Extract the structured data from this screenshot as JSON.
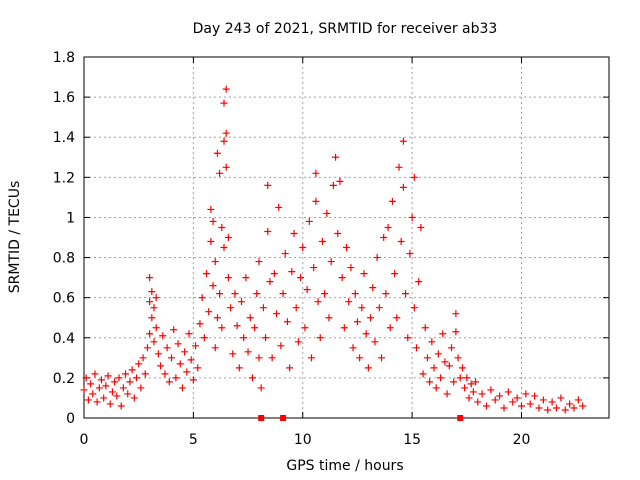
{
  "chart_data": {
    "type": "scatter",
    "title": "Day 243 of 2021, SRMTID for receiver ab33",
    "xlabel": "GPS time / hours",
    "ylabel": "SRMTID / TECUs",
    "xlim": [
      0,
      24
    ],
    "ylim": [
      0,
      1.8
    ],
    "grid": true,
    "marker": "+",
    "series_color": "#ff0000",
    "x_ticks": [
      {
        "value": 0,
        "label": "0"
      },
      {
        "value": 5,
        "label": "5"
      },
      {
        "value": 10,
        "label": "10"
      },
      {
        "value": 15,
        "label": "15"
      },
      {
        "value": 20,
        "label": "20"
      }
    ],
    "y_ticks": [
      {
        "value": 0,
        "label": "0"
      },
      {
        "value": 0.2,
        "label": "0.2"
      },
      {
        "value": 0.4,
        "label": "0.4"
      },
      {
        "value": 0.6,
        "label": "0.6"
      },
      {
        "value": 0.8,
        "label": "0.8"
      },
      {
        "value": 1.0,
        "label": "1"
      },
      {
        "value": 1.2,
        "label": "1.2"
      },
      {
        "value": 1.4,
        "label": "1.4"
      },
      {
        "value": 1.6,
        "label": "1.6"
      },
      {
        "value": 1.8,
        "label": "1.8"
      }
    ],
    "series": [
      {
        "name": "SRMTID",
        "points": [
          [
            0.0,
            0.14
          ],
          [
            0.1,
            0.2
          ],
          [
            0.2,
            0.09
          ],
          [
            0.3,
            0.17
          ],
          [
            0.4,
            0.12
          ],
          [
            0.5,
            0.22
          ],
          [
            0.6,
            0.08
          ],
          [
            0.7,
            0.15
          ],
          [
            0.8,
            0.19
          ],
          [
            0.9,
            0.1
          ],
          [
            1.0,
            0.16
          ],
          [
            1.1,
            0.21
          ],
          [
            1.2,
            0.07
          ],
          [
            1.3,
            0.13
          ],
          [
            1.4,
            0.18
          ],
          [
            1.5,
            0.11
          ],
          [
            1.6,
            0.2
          ],
          [
            1.7,
            0.06
          ],
          [
            1.8,
            0.15
          ],
          [
            1.9,
            0.22
          ],
          [
            2.0,
            0.12
          ],
          [
            2.1,
            0.18
          ],
          [
            2.2,
            0.24
          ],
          [
            2.3,
            0.1
          ],
          [
            2.4,
            0.2
          ],
          [
            2.5,
            0.27
          ],
          [
            2.6,
            0.15
          ],
          [
            2.7,
            0.3
          ],
          [
            2.8,
            0.22
          ],
          [
            2.9,
            0.35
          ],
          [
            3.0,
            0.42
          ],
          [
            3.0,
            0.58
          ],
          [
            3.0,
            0.7
          ],
          [
            3.1,
            0.5
          ],
          [
            3.1,
            0.63
          ],
          [
            3.2,
            0.38
          ],
          [
            3.2,
            0.55
          ],
          [
            3.3,
            0.6
          ],
          [
            3.3,
            0.45
          ],
          [
            3.4,
            0.32
          ],
          [
            3.5,
            0.26
          ],
          [
            3.6,
            0.41
          ],
          [
            3.7,
            0.22
          ],
          [
            3.8,
            0.35
          ],
          [
            3.9,
            0.18
          ],
          [
            4.0,
            0.3
          ],
          [
            4.1,
            0.44
          ],
          [
            4.2,
            0.2
          ],
          [
            4.3,
            0.37
          ],
          [
            4.4,
            0.27
          ],
          [
            4.5,
            0.15
          ],
          [
            4.6,
            0.33
          ],
          [
            4.7,
            0.23
          ],
          [
            4.8,
            0.42
          ],
          [
            4.9,
            0.29
          ],
          [
            5.0,
            0.19
          ],
          [
            5.1,
            0.36
          ],
          [
            5.2,
            0.25
          ],
          [
            5.3,
            0.47
          ],
          [
            5.4,
            0.6
          ],
          [
            5.5,
            0.4
          ],
          [
            5.6,
            0.72
          ],
          [
            5.7,
            0.53
          ],
          [
            5.8,
            0.88
          ],
          [
            5.8,
            1.04
          ],
          [
            5.9,
            0.98
          ],
          [
            5.9,
            0.66
          ],
          [
            6.0,
            0.35
          ],
          [
            6.0,
            0.78
          ],
          [
            6.1,
            0.5
          ],
          [
            6.1,
            1.32
          ],
          [
            6.2,
            0.62
          ],
          [
            6.2,
            1.22
          ],
          [
            6.3,
            0.45
          ],
          [
            6.3,
            0.95
          ],
          [
            6.4,
            1.38
          ],
          [
            6.4,
            0.85
          ],
          [
            6.4,
            1.57
          ],
          [
            6.5,
            1.64
          ],
          [
            6.5,
            1.42
          ],
          [
            6.5,
            1.25
          ],
          [
            6.6,
            0.7
          ],
          [
            6.6,
            0.9
          ],
          [
            6.7,
            0.55
          ],
          [
            6.8,
            0.32
          ],
          [
            6.9,
            0.62
          ],
          [
            7.0,
            0.46
          ],
          [
            7.1,
            0.25
          ],
          [
            7.2,
            0.58
          ],
          [
            7.3,
            0.4
          ],
          [
            7.4,
            0.7
          ],
          [
            7.5,
            0.33
          ],
          [
            7.6,
            0.5
          ],
          [
            7.7,
            0.2
          ],
          [
            7.8,
            0.45
          ],
          [
            7.9,
            0.62
          ],
          [
            8.0,
            0.3
          ],
          [
            8.0,
            0.78
          ],
          [
            8.1,
            0.15
          ],
          [
            8.2,
            0.55
          ],
          [
            8.3,
            0.4
          ],
          [
            8.4,
            0.93
          ],
          [
            8.4,
            1.16
          ],
          [
            8.5,
            0.68
          ],
          [
            8.6,
            0.3
          ],
          [
            8.7,
            0.72
          ],
          [
            8.8,
            0.52
          ],
          [
            8.9,
            1.05
          ],
          [
            9.0,
            0.36
          ],
          [
            9.1,
            0.62
          ],
          [
            9.2,
            0.82
          ],
          [
            9.3,
            0.48
          ],
          [
            9.4,
            0.25
          ],
          [
            9.5,
            0.73
          ],
          [
            9.6,
            0.92
          ],
          [
            9.7,
            0.55
          ],
          [
            9.8,
            0.38
          ],
          [
            9.9,
            0.7
          ],
          [
            10.0,
            0.85
          ],
          [
            10.1,
            0.45
          ],
          [
            10.2,
            0.64
          ],
          [
            10.3,
            0.98
          ],
          [
            10.4,
            0.3
          ],
          [
            10.5,
            0.75
          ],
          [
            10.6,
            1.08
          ],
          [
            10.6,
            1.22
          ],
          [
            10.7,
            0.58
          ],
          [
            10.8,
            0.4
          ],
          [
            10.9,
            0.88
          ],
          [
            11.0,
            0.62
          ],
          [
            11.1,
            1.02
          ],
          [
            11.2,
            0.5
          ],
          [
            11.3,
            0.78
          ],
          [
            11.4,
            1.16
          ],
          [
            11.5,
            1.3
          ],
          [
            11.6,
            0.92
          ],
          [
            11.7,
            1.18
          ],
          [
            11.8,
            0.7
          ],
          [
            11.9,
            0.45
          ],
          [
            12.0,
            0.85
          ],
          [
            12.1,
            0.58
          ],
          [
            12.2,
            0.75
          ],
          [
            12.3,
            0.35
          ],
          [
            12.4,
            0.62
          ],
          [
            12.5,
            0.48
          ],
          [
            12.6,
            0.3
          ],
          [
            12.7,
            0.55
          ],
          [
            12.8,
            0.72
          ],
          [
            12.9,
            0.42
          ],
          [
            13.0,
            0.25
          ],
          [
            13.1,
            0.5
          ],
          [
            13.2,
            0.65
          ],
          [
            13.3,
            0.38
          ],
          [
            13.4,
            0.8
          ],
          [
            13.5,
            0.55
          ],
          [
            13.6,
            0.3
          ],
          [
            13.7,
            0.9
          ],
          [
            13.8,
            0.62
          ],
          [
            13.9,
            0.95
          ],
          [
            14.0,
            0.45
          ],
          [
            14.1,
            1.08
          ],
          [
            14.2,
            0.72
          ],
          [
            14.3,
            0.5
          ],
          [
            14.4,
            1.25
          ],
          [
            14.5,
            0.88
          ],
          [
            14.6,
            1.38
          ],
          [
            14.6,
            1.15
          ],
          [
            14.7,
            0.62
          ],
          [
            14.8,
            0.4
          ],
          [
            14.9,
            0.82
          ],
          [
            15.0,
            1.0
          ],
          [
            15.1,
            1.2
          ],
          [
            15.1,
            0.55
          ],
          [
            15.2,
            0.35
          ],
          [
            15.3,
            0.68
          ],
          [
            15.4,
            0.95
          ],
          [
            15.5,
            0.22
          ],
          [
            15.6,
            0.45
          ],
          [
            15.7,
            0.3
          ],
          [
            15.8,
            0.18
          ],
          [
            15.9,
            0.38
          ],
          [
            16.0,
            0.25
          ],
          [
            16.1,
            0.15
          ],
          [
            16.2,
            0.32
          ],
          [
            16.3,
            0.2
          ],
          [
            16.4,
            0.42
          ],
          [
            16.5,
            0.28
          ],
          [
            16.6,
            0.12
          ],
          [
            16.7,
            0.26
          ],
          [
            16.8,
            0.35
          ],
          [
            16.9,
            0.18
          ],
          [
            17.0,
            0.43
          ],
          [
            17.0,
            0.52
          ],
          [
            17.1,
            0.3
          ],
          [
            17.2,
            0.2
          ],
          [
            17.3,
            0.25
          ],
          [
            17.4,
            0.15
          ],
          [
            17.5,
            0.2
          ],
          [
            17.6,
            0.1
          ],
          [
            17.7,
            0.17
          ],
          [
            17.8,
            0.13
          ],
          [
            17.9,
            0.18
          ],
          [
            18.0,
            0.08
          ],
          [
            18.2,
            0.12
          ],
          [
            18.4,
            0.06
          ],
          [
            18.6,
            0.14
          ],
          [
            18.8,
            0.09
          ],
          [
            19.0,
            0.11
          ],
          [
            19.2,
            0.05
          ],
          [
            19.4,
            0.13
          ],
          [
            19.6,
            0.08
          ],
          [
            19.8,
            0.1
          ],
          [
            20.0,
            0.06
          ],
          [
            20.2,
            0.12
          ],
          [
            20.4,
            0.07
          ],
          [
            20.6,
            0.11
          ],
          [
            20.8,
            0.05
          ],
          [
            21.0,
            0.09
          ],
          [
            21.2,
            0.04
          ],
          [
            21.4,
            0.08
          ],
          [
            21.6,
            0.05
          ],
          [
            21.8,
            0.1
          ],
          [
            22.0,
            0.04
          ],
          [
            22.2,
            0.07
          ],
          [
            22.4,
            0.05
          ],
          [
            22.6,
            0.09
          ],
          [
            22.8,
            0.06
          ]
        ]
      }
    ],
    "gap_marks": [
      8.1,
      9.1,
      17.2
    ]
  }
}
